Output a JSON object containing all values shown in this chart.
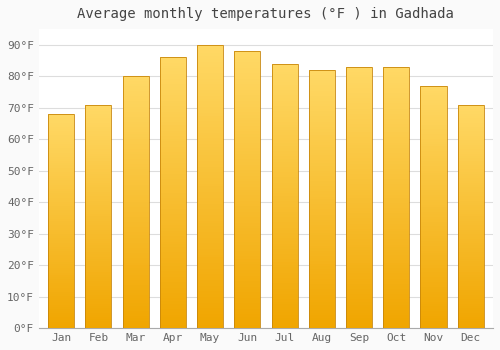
{
  "title": "Average monthly temperatures (°F ) in Gadhada",
  "months": [
    "Jan",
    "Feb",
    "Mar",
    "Apr",
    "May",
    "Jun",
    "Jul",
    "Aug",
    "Sep",
    "Oct",
    "Nov",
    "Dec"
  ],
  "values": [
    68,
    71,
    80,
    86,
    90,
    88,
    84,
    82,
    83,
    83,
    77,
    71
  ],
  "bar_color_top": "#FFD966",
  "bar_color_bottom": "#F0A500",
  "bar_edge_color": "#C8860A",
  "background_color": "#FAFAFA",
  "plot_bg_color": "#FFFFFF",
  "grid_color": "#DDDDDD",
  "ylim": [
    0,
    95
  ],
  "yticks": [
    0,
    10,
    20,
    30,
    40,
    50,
    60,
    70,
    80,
    90
  ],
  "ytick_labels": [
    "0°F",
    "10°F",
    "20°F",
    "30°F",
    "40°F",
    "50°F",
    "60°F",
    "70°F",
    "80°F",
    "90°F"
  ],
  "title_fontsize": 10,
  "tick_fontsize": 8,
  "title_color": "#444444",
  "tick_color": "#666666",
  "bar_width": 0.7
}
